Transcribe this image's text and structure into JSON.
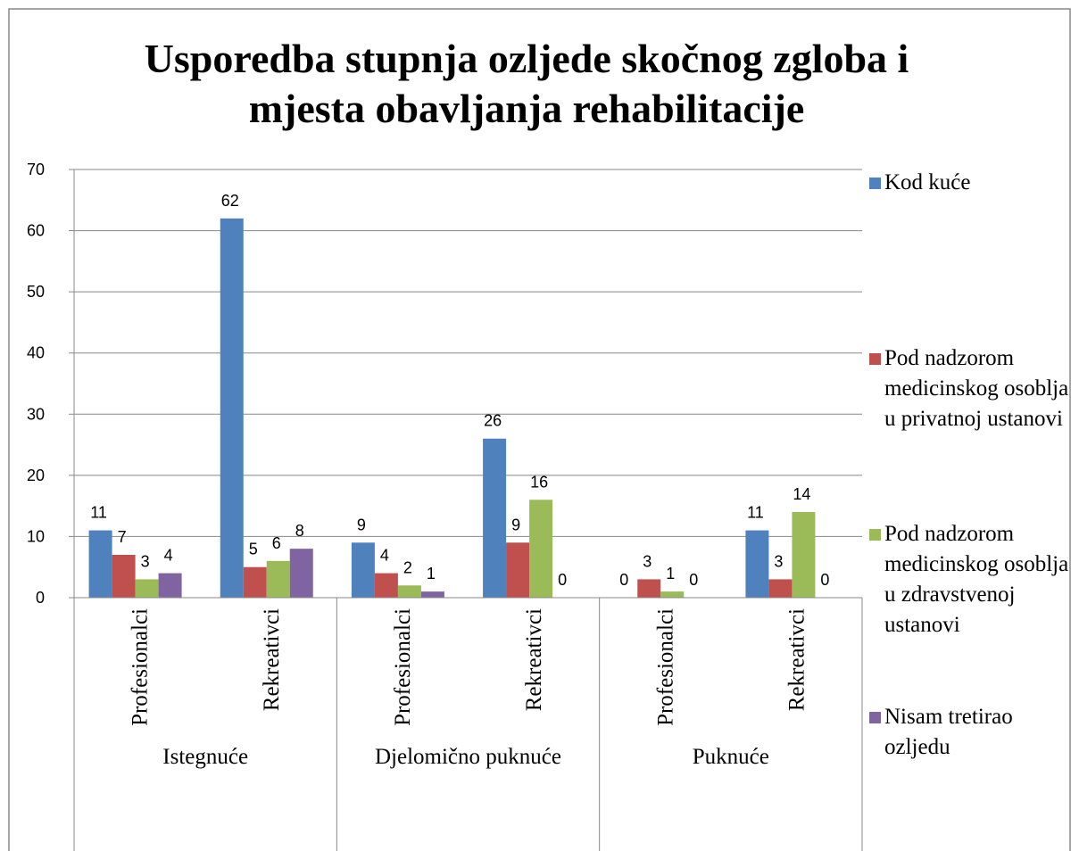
{
  "chart_data": {
    "type": "bar",
    "title": "Usporedba stupnja ozljede skočnog zgloba i mjesta obavljanja rehabilitacije",
    "categories": [
      "Profesionalci",
      "Rekreativci",
      "Profesionalci",
      "Rekreativci",
      "Profesionalci",
      "Rekreativci"
    ],
    "groups": [
      "Istegnuće",
      "Djelomično puknuće",
      "Puknuće"
    ],
    "series": [
      {
        "name": "Kod kuće",
        "color": "#4f81bd",
        "values": [
          11,
          62,
          9,
          26,
          0,
          11
        ]
      },
      {
        "name": "Pod nadzorom medicinskog osoblja u privatnoj ustanovi",
        "color": "#c0504d",
        "values": [
          7,
          5,
          4,
          9,
          3,
          3
        ]
      },
      {
        "name": "Pod nadzorom medicinskog osoblja u zdravstvenoj ustanovi",
        "color": "#9bbb59",
        "values": [
          3,
          6,
          2,
          16,
          1,
          14
        ]
      },
      {
        "name": "Nisam tretirao ozljedu",
        "color": "#8064a2",
        "values": [
          4,
          8,
          1,
          0,
          0,
          0
        ]
      }
    ],
    "ylim": [
      0,
      70
    ],
    "yticks": [
      0,
      10,
      20,
      30,
      40,
      50,
      60,
      70
    ],
    "grid": true,
    "legend": "right"
  }
}
